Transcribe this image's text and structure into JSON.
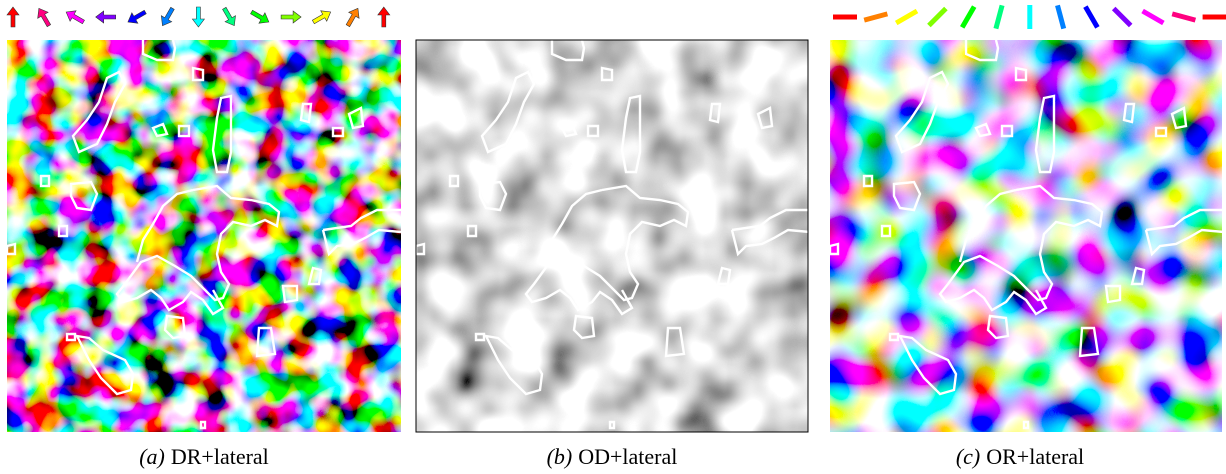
{
  "panels": [
    {
      "tag": "(a)",
      "caption": "DR+lateral"
    },
    {
      "tag": "(b)",
      "caption": "OD+lateral"
    },
    {
      "tag": "(c)",
      "caption": "OR+lateral"
    }
  ]
}
